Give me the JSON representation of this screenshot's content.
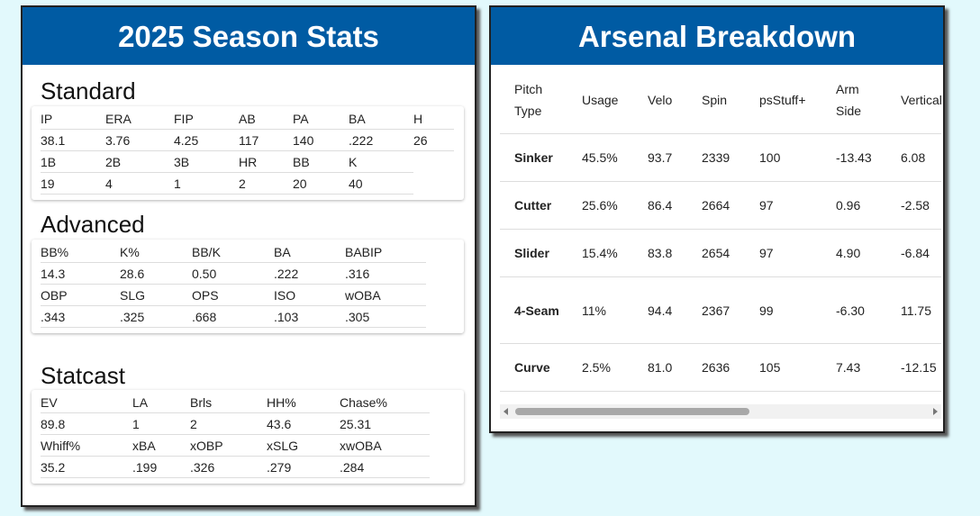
{
  "left": {
    "title": "2025 Season Stats",
    "sections": [
      {
        "title": "Standard",
        "rows": [
          [
            "IP",
            "ERA",
            "FIP",
            "AB",
            "PA",
            "BA",
            "H"
          ],
          [
            "38.1",
            "3.76",
            "4.25",
            "117",
            "140",
            ".222",
            "26"
          ],
          [
            "1B",
            "2B",
            "3B",
            "HR",
            "BB",
            "K"
          ],
          [
            "19",
            "4",
            "1",
            "2",
            "20",
            "40"
          ]
        ]
      },
      {
        "title": "Advanced",
        "rows": [
          [
            "BB%",
            "K%",
            "BB/K",
            "BA",
            "BABIP"
          ],
          [
            "14.3",
            "28.6",
            "0.50",
            ".222",
            ".316"
          ],
          [
            "OBP",
            "SLG",
            "OPS",
            "ISO",
            "wOBA"
          ],
          [
            ".343",
            ".325",
            ".668",
            ".103",
            ".305"
          ]
        ]
      },
      {
        "title": "Statcast",
        "rows": [
          [
            "EV",
            "LA",
            "Brls",
            "HH%",
            "Chase%"
          ],
          [
            "89.8",
            "1",
            "2",
            "43.6",
            "25.31"
          ],
          [
            "Whiff%",
            "xBA",
            "xOBP",
            "xSLG",
            "xwOBA"
          ],
          [
            "35.2",
            ".199",
            ".326",
            ".279",
            ".284"
          ]
        ]
      }
    ]
  },
  "right": {
    "title": "Arsenal Breakdown",
    "table": {
      "columns": [
        "Pitch Type",
        "Usage",
        "Velo",
        "Spin",
        "psStuff+",
        "Arm Side",
        "Vertical"
      ],
      "rows": [
        [
          "Sinker",
          "45.5%",
          "93.7",
          "2339",
          "100",
          "-13.43",
          "6.08"
        ],
        [
          "Cutter",
          "25.6%",
          "86.4",
          "2664",
          "97",
          "0.96",
          "-2.58"
        ],
        [
          "Slider",
          "15.4%",
          "83.8",
          "2654",
          "97",
          "4.90",
          "-6.84"
        ],
        [
          "4-Seam",
          "11%",
          "94.4",
          "2367",
          "99",
          "-6.30",
          "11.75"
        ],
        [
          "Curve",
          "2.5%",
          "81.0",
          "2636",
          "105",
          "7.43",
          "-12.15"
        ]
      ]
    }
  }
}
